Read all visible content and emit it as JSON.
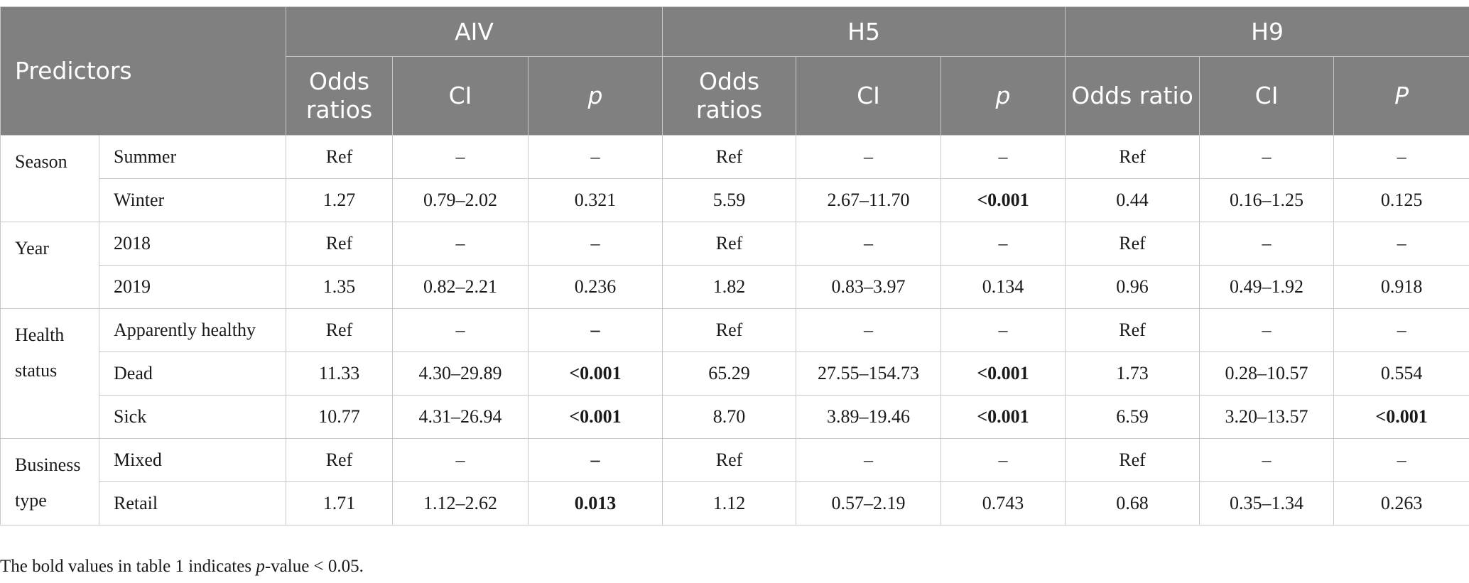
{
  "header": {
    "predictors": "Predictors",
    "groups": [
      "AIV",
      "H5",
      "H9"
    ],
    "sub": {
      "aiv": [
        "Odds ratios",
        "CI",
        "p"
      ],
      "h5": [
        "Odds ratios",
        "CI",
        "p"
      ],
      "h9": [
        "Odds ratio",
        "CI",
        "P"
      ]
    }
  },
  "rows": [
    {
      "pred": "Season",
      "lev": "Summer",
      "v": [
        "Ref",
        "–",
        "–",
        "Ref",
        "–",
        "–",
        "Ref",
        "–",
        "–"
      ]
    },
    {
      "pred": "",
      "lev": "Winter",
      "v": [
        "1.27",
        "0.79–2.02",
        "0.321",
        "5.59",
        "2.67–11.70",
        "<0.001",
        "0.44",
        "0.16–1.25",
        "0.125"
      ]
    },
    {
      "pred": "Year",
      "lev": "2018",
      "v": [
        "Ref",
        "–",
        "–",
        "Ref",
        "–",
        "–",
        "Ref",
        "–",
        "–"
      ]
    },
    {
      "pred": "",
      "lev": "2019",
      "v": [
        "1.35",
        "0.82–2.21",
        "0.236",
        "1.82",
        "0.83–3.97",
        "0.134",
        "0.96",
        "0.49–1.92",
        "0.918"
      ]
    },
    {
      "pred": "Health status",
      "lev": "Apparently healthy",
      "v": [
        "Ref",
        "–",
        "–",
        "Ref",
        "–",
        "–",
        "Ref",
        "–",
        "–"
      ]
    },
    {
      "pred": "",
      "lev": "Dead",
      "v": [
        "11.33",
        "4.30–29.89",
        "<0.001",
        "65.29",
        "27.55–154.73",
        "<0.001",
        "1.73",
        "0.28–10.57",
        "0.554"
      ]
    },
    {
      "pred": "",
      "lev": "Sick",
      "v": [
        "10.77",
        "4.31–26.94",
        "<0.001",
        "8.70",
        "3.89–19.46",
        "<0.001",
        "6.59",
        "3.20–13.57",
        "<0.001"
      ]
    },
    {
      "pred": "Business type",
      "lev": "Mixed",
      "v": [
        "Ref",
        "–",
        "–",
        "Ref",
        "–",
        "–",
        "Ref",
        "–",
        "–"
      ]
    },
    {
      "pred": "",
      "lev": "Retail",
      "v": [
        "1.71",
        "1.12–2.62",
        "0.013",
        "1.12",
        "0.57–2.19",
        "0.743",
        "0.68",
        "0.35–1.34",
        "0.263"
      ]
    }
  ],
  "footnote": {
    "pre": "The bold values in table 1 indicates ",
    "p": "p",
    "post": "-value < 0.05."
  }
}
